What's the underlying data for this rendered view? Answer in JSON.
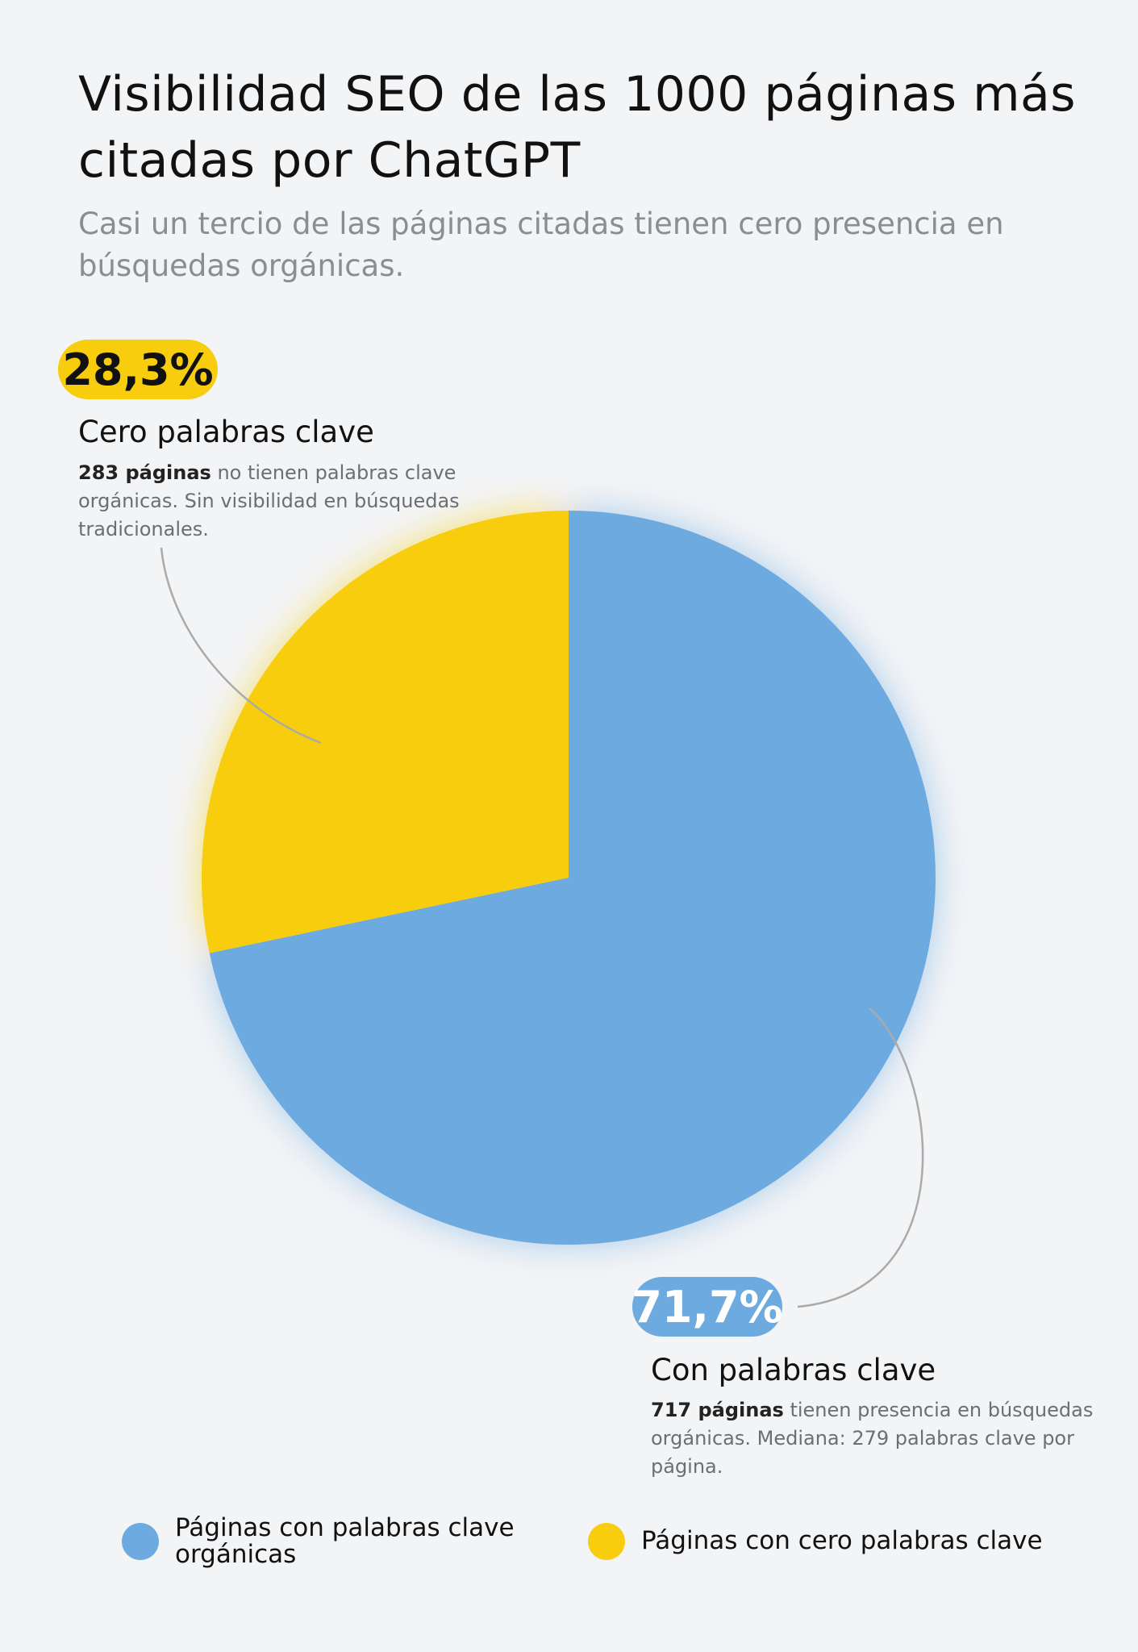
{
  "chart_data": {
    "type": "pie",
    "title": "Visibilidad SEO de las 1000 páginas más citadas por ChatGPT",
    "subtitle": "Casi un tercio de las páginas citadas tienen cero presencia en búsquedas orgánicas.",
    "categories": [
      "Páginas con palabras clave orgánicas",
      "Páginas con cero palabras clave"
    ],
    "values": [
      71.7,
      28.3
    ],
    "value_labels": [
      "71,7%",
      "28,3%"
    ],
    "colors": [
      "#6caae0",
      "#f8cd0e"
    ],
    "annotations": [
      {
        "title": "Con palabras clave",
        "highlight": "717 páginas",
        "text": "tienen presencia en búsquedas orgánicas. Mediana: 279 palabras clave por página."
      },
      {
        "title": "Cero palabras clave",
        "highlight": "283 páginas",
        "text": "no tienen palabras clave orgánicas. Sin visibilidad en búsquedas tradicionales."
      }
    ]
  }
}
